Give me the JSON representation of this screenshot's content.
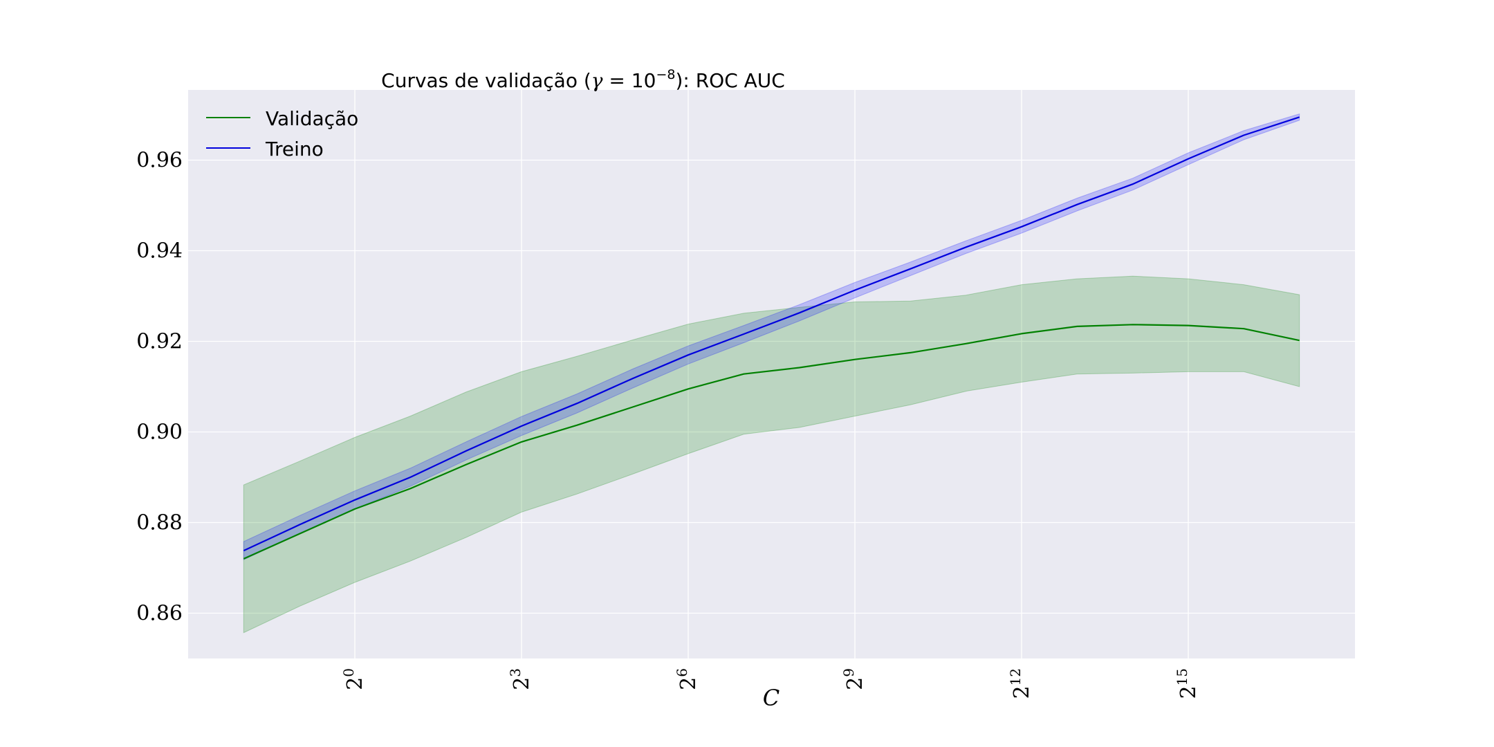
{
  "chart_data": {
    "type": "line",
    "title": {
      "prefix": "Curvas de validação (",
      "gamma": "γ",
      "equals": " = ",
      "base": "10",
      "exponent": "−8",
      "suffix": "): ROC AUC"
    },
    "xlabel": "C",
    "x_scale": "log2",
    "x": [
      -2,
      -1,
      0,
      1,
      2,
      3,
      4,
      5,
      6,
      7,
      8,
      9,
      10,
      11,
      12,
      13,
      14,
      15,
      16,
      17
    ],
    "x_tick_values": [
      0,
      3,
      6,
      9,
      12,
      15
    ],
    "x_tick_labels": [
      {
        "base": "2",
        "exp": "0"
      },
      {
        "base": "2",
        "exp": "3"
      },
      {
        "base": "2",
        "exp": "6"
      },
      {
        "base": "2",
        "exp": "9"
      },
      {
        "base": "2",
        "exp": "12"
      },
      {
        "base": "2",
        "exp": "15"
      }
    ],
    "xlim": [
      -3,
      18
    ],
    "ylim": [
      0.85,
      0.9755
    ],
    "y_ticks": [
      0.86,
      0.88,
      0.9,
      0.92,
      0.94,
      0.96
    ],
    "y_tick_labels": [
      "0.86",
      "0.88",
      "0.90",
      "0.92",
      "0.94",
      "0.96"
    ],
    "grid": true,
    "legend_position": "top-left",
    "series": [
      {
        "name": "Validação",
        "color": "#008000",
        "band_color": "#008000",
        "values": [
          0.872,
          0.8775,
          0.883,
          0.8875,
          0.8928,
          0.8978,
          0.9015,
          0.9055,
          0.9095,
          0.9128,
          0.9142,
          0.916,
          0.9175,
          0.9195,
          0.9217,
          0.9233,
          0.9237,
          0.9235,
          0.9228,
          0.9202
        ],
        "lower": [
          0.8557,
          0.8615,
          0.8668,
          0.8715,
          0.8767,
          0.8823,
          0.8863,
          0.8907,
          0.8952,
          0.8995,
          0.901,
          0.9035,
          0.906,
          0.909,
          0.911,
          0.9128,
          0.913,
          0.9133,
          0.9133,
          0.91
        ],
        "upper": [
          0.8883,
          0.8935,
          0.8988,
          0.9035,
          0.9088,
          0.9133,
          0.9167,
          0.9203,
          0.9238,
          0.9262,
          0.9275,
          0.9287,
          0.9289,
          0.9302,
          0.9325,
          0.9338,
          0.9344,
          0.9338,
          0.9325,
          0.9303
        ]
      },
      {
        "name": "Treino",
        "color": "#0000dd",
        "band_color": "#0000ff",
        "values": [
          0.8738,
          0.8795,
          0.885,
          0.89,
          0.8958,
          0.9013,
          0.9063,
          0.9118,
          0.917,
          0.9216,
          0.9263,
          0.9313,
          0.936,
          0.9408,
          0.9453,
          0.9502,
          0.9547,
          0.9603,
          0.9655,
          0.9695
        ],
        "lower": [
          0.8718,
          0.8775,
          0.883,
          0.888,
          0.8938,
          0.8992,
          0.9042,
          0.9097,
          0.915,
          0.9197,
          0.9245,
          0.9296,
          0.9345,
          0.9394,
          0.9439,
          0.9488,
          0.9534,
          0.959,
          0.9645,
          0.9688
        ],
        "upper": [
          0.8758,
          0.8815,
          0.887,
          0.892,
          0.8978,
          0.9034,
          0.9084,
          0.9139,
          0.919,
          0.9235,
          0.9281,
          0.933,
          0.9375,
          0.9422,
          0.9467,
          0.9516,
          0.956,
          0.9616,
          0.9665,
          0.9702
        ]
      }
    ],
    "style": {
      "plot_background": "#eaeaf2",
      "grid_color": "#ffffff"
    }
  }
}
